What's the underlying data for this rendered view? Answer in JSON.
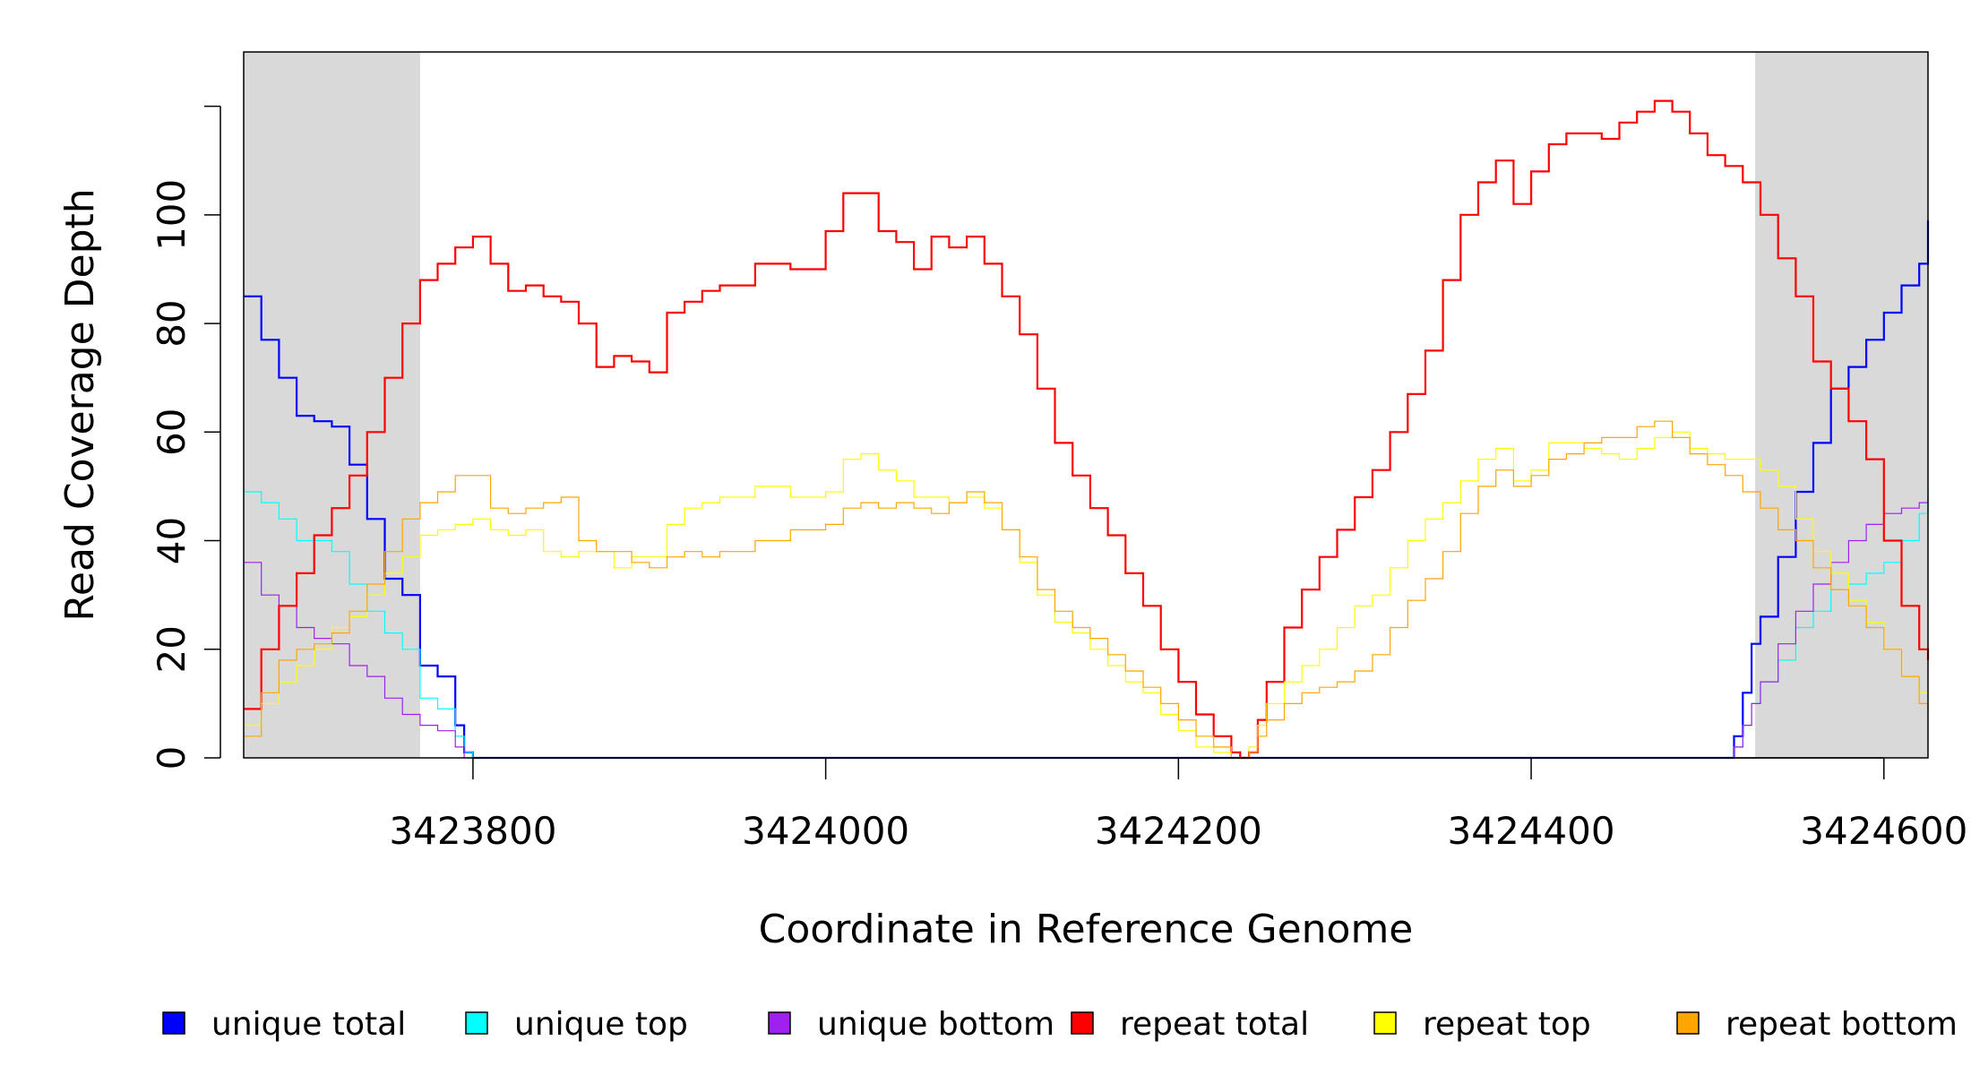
{
  "chart_data": {
    "type": "line",
    "title": "",
    "xlabel": "Coordinate in Reference Genome",
    "ylabel": "Read Coverage Depth",
    "xlim": [
      3423670,
      3424625
    ],
    "ylim": [
      0,
      130
    ],
    "x_ticks": [
      3423800,
      3424000,
      3424200,
      3424400,
      3424600
    ],
    "x_tick_labels": [
      "3423800",
      "3424000",
      "3424200",
      "3424400",
      "3424600"
    ],
    "y_ticks": [
      0,
      20,
      40,
      60,
      80,
      100,
      120
    ],
    "y_tick_labels": [
      "0",
      "20",
      "40",
      "60",
      "80",
      "100",
      ""
    ],
    "shaded_regions": [
      [
        3423670,
        3423770
      ],
      [
        3424527,
        3424625
      ]
    ],
    "grid": false,
    "legend_position": "bottom",
    "series": [
      {
        "name": "unique total",
        "color": "#0000ff",
        "line_width": 2.2,
        "x": [
          3423670,
          3423680,
          3423690,
          3423700,
          3423710,
          3423720,
          3423730,
          3423740,
          3423750,
          3423760,
          3423770,
          3423780,
          3423790,
          3423795,
          3423800,
          3424510,
          3424515,
          3424520,
          3424525,
          3424530,
          3424540,
          3424550,
          3424560,
          3424570,
          3424580,
          3424590,
          3424600,
          3424610,
          3424620,
          3424625
        ],
        "y": [
          85,
          77,
          70,
          63,
          62,
          61,
          54,
          44,
          33,
          30,
          17,
          15,
          6,
          1,
          0,
          0,
          4,
          12,
          21,
          26,
          37,
          49,
          58,
          68,
          72,
          77,
          82,
          87,
          91,
          99
        ]
      },
      {
        "name": "unique top",
        "color": "#00ffff",
        "line_width": 1.2,
        "x": [
          3423670,
          3423680,
          3423690,
          3423700,
          3423710,
          3423720,
          3423730,
          3423740,
          3423750,
          3423760,
          3423770,
          3423780,
          3423790,
          3423795,
          3423800,
          3424510,
          3424515,
          3424520,
          3424525,
          3424530,
          3424540,
          3424550,
          3424560,
          3424570,
          3424580,
          3424590,
          3424600,
          3424610,
          3424620,
          3424625
        ],
        "y": [
          49,
          47,
          44,
          40,
          40,
          38,
          32,
          27,
          23,
          20,
          11,
          9,
          4,
          1,
          0,
          0,
          2,
          6,
          10,
          14,
          18,
          24,
          27,
          31,
          32,
          34,
          36,
          40,
          45,
          50
        ]
      },
      {
        "name": "unique bottom",
        "color": "#a020f0",
        "line_width": 1.2,
        "x": [
          3423670,
          3423680,
          3423690,
          3423700,
          3423710,
          3423720,
          3423730,
          3423740,
          3423750,
          3423760,
          3423770,
          3423780,
          3423790,
          3423795,
          3423800,
          3424510,
          3424515,
          3424520,
          3424525,
          3424530,
          3424540,
          3424550,
          3424560,
          3424570,
          3424580,
          3424590,
          3424600,
          3424610,
          3424620,
          3424625
        ],
        "y": [
          36,
          30,
          28,
          24,
          22,
          21,
          17,
          15,
          11,
          8,
          6,
          5,
          2,
          0,
          0,
          0,
          2,
          6,
          10,
          14,
          21,
          27,
          32,
          36,
          40,
          43,
          45,
          46,
          47,
          48
        ]
      },
      {
        "name": "repeat total",
        "color": "#ff0000",
        "line_width": 2.2,
        "x": [
          3423670,
          3423680,
          3423690,
          3423700,
          3423710,
          3423720,
          3423730,
          3423740,
          3423750,
          3423760,
          3423770,
          3423780,
          3423790,
          3423800,
          3423810,
          3423820,
          3423830,
          3423840,
          3423850,
          3423860,
          3423870,
          3423880,
          3423890,
          3423900,
          3423910,
          3423920,
          3423930,
          3423940,
          3423960,
          3423980,
          3424000,
          3424010,
          3424020,
          3424030,
          3424040,
          3424050,
          3424060,
          3424070,
          3424080,
          3424090,
          3424100,
          3424110,
          3424120,
          3424130,
          3424140,
          3424150,
          3424160,
          3424170,
          3424180,
          3424190,
          3424200,
          3424210,
          3424220,
          3424230,
          3424235,
          3424240,
          3424245,
          3424250,
          3424260,
          3424270,
          3424280,
          3424290,
          3424300,
          3424310,
          3424320,
          3424330,
          3424340,
          3424350,
          3424360,
          3424370,
          3424380,
          3424390,
          3424400,
          3424410,
          3424420,
          3424430,
          3424440,
          3424450,
          3424460,
          3424470,
          3424480,
          3424490,
          3424500,
          3424510,
          3424520,
          3424530,
          3424540,
          3424550,
          3424560,
          3424570,
          3424580,
          3424590,
          3424600,
          3424610,
          3424620,
          3424625
        ],
        "y": [
          9,
          20,
          28,
          34,
          41,
          46,
          52,
          60,
          70,
          80,
          88,
          91,
          94,
          96,
          91,
          86,
          87,
          85,
          84,
          80,
          72,
          74,
          73,
          71,
          82,
          84,
          86,
          87,
          91,
          90,
          97,
          104,
          104,
          97,
          95,
          90,
          96,
          94,
          96,
          91,
          85,
          78,
          68,
          58,
          52,
          46,
          41,
          34,
          28,
          20,
          14,
          8,
          4,
          1,
          0,
          1,
          7,
          14,
          24,
          31,
          37,
          42,
          48,
          53,
          60,
          67,
          75,
          88,
          100,
          106,
          110,
          102,
          108,
          113,
          115,
          115,
          114,
          117,
          119,
          121,
          119,
          115,
          111,
          109,
          106,
          100,
          92,
          85,
          73,
          68,
          62,
          55,
          40,
          28,
          20,
          18
        ]
      },
      {
        "name": "repeat top",
        "color": "#ffff00",
        "line_width": 1.2,
        "x": [
          3423670,
          3423680,
          3423690,
          3423700,
          3423710,
          3423720,
          3423730,
          3423740,
          3423750,
          3423760,
          3423770,
          3423780,
          3423790,
          3423800,
          3423810,
          3423820,
          3423830,
          3423840,
          3423850,
          3423860,
          3423870,
          3423880,
          3423890,
          3423900,
          3423910,
          3423920,
          3423930,
          3423940,
          3423960,
          3423980,
          3424000,
          3424010,
          3424020,
          3424030,
          3424040,
          3424050,
          3424060,
          3424070,
          3424080,
          3424090,
          3424100,
          3424110,
          3424120,
          3424130,
          3424140,
          3424150,
          3424160,
          3424170,
          3424180,
          3424190,
          3424200,
          3424210,
          3424220,
          3424230,
          3424235,
          3424240,
          3424245,
          3424250,
          3424260,
          3424270,
          3424280,
          3424290,
          3424300,
          3424310,
          3424320,
          3424330,
          3424340,
          3424350,
          3424360,
          3424370,
          3424380,
          3424390,
          3424400,
          3424410,
          3424420,
          3424430,
          3424440,
          3424450,
          3424460,
          3424470,
          3424480,
          3424490,
          3424500,
          3424510,
          3424520,
          3424530,
          3424540,
          3424550,
          3424560,
          3424570,
          3424580,
          3424590,
          3424600,
          3424610,
          3424620,
          3424625
        ],
        "y": [
          6,
          10,
          14,
          17,
          20,
          24,
          26,
          30,
          34,
          37,
          41,
          42,
          43,
          44,
          42,
          41,
          42,
          38,
          37,
          38,
          38,
          35,
          37,
          37,
          43,
          46,
          47,
          48,
          50,
          48,
          49,
          55,
          56,
          53,
          51,
          48,
          48,
          47,
          48,
          46,
          42,
          36,
          30,
          25,
          23,
          20,
          17,
          14,
          12,
          8,
          5,
          2,
          1,
          0,
          0,
          2,
          6,
          10,
          14,
          17,
          20,
          24,
          28,
          30,
          35,
          40,
          44,
          47,
          51,
          55,
          57,
          51,
          53,
          58,
          58,
          57,
          56,
          55,
          57,
          59,
          60,
          57,
          56,
          55,
          55,
          53,
          50,
          44,
          38,
          34,
          29,
          25,
          20,
          15,
          12,
          10
        ]
      },
      {
        "name": "repeat bottom",
        "color": "#ffa500",
        "line_width": 1.2,
        "x": [
          3423670,
          3423680,
          3423690,
          3423700,
          3423710,
          3423720,
          3423730,
          3423740,
          3423750,
          3423760,
          3423770,
          3423780,
          3423790,
          3423800,
          3423810,
          3423820,
          3423830,
          3423840,
          3423850,
          3423860,
          3423870,
          3423880,
          3423890,
          3423900,
          3423910,
          3423920,
          3423930,
          3423940,
          3423960,
          3423980,
          3424000,
          3424010,
          3424020,
          3424030,
          3424040,
          3424050,
          3424060,
          3424070,
          3424080,
          3424090,
          3424100,
          3424110,
          3424120,
          3424130,
          3424140,
          3424150,
          3424160,
          3424170,
          3424180,
          3424190,
          3424200,
          3424210,
          3424220,
          3424230,
          3424235,
          3424240,
          3424245,
          3424250,
          3424260,
          3424270,
          3424280,
          3424290,
          3424300,
          3424310,
          3424320,
          3424330,
          3424340,
          3424350,
          3424360,
          3424370,
          3424380,
          3424390,
          3424400,
          3424410,
          3424420,
          3424430,
          3424440,
          3424450,
          3424460,
          3424470,
          3424480,
          3424490,
          3424500,
          3424510,
          3424520,
          3424530,
          3424540,
          3424550,
          3424560,
          3424570,
          3424580,
          3424590,
          3424600,
          3424610,
          3424620,
          3424625
        ],
        "y": [
          4,
          12,
          18,
          20,
          21,
          23,
          27,
          32,
          38,
          44,
          47,
          49,
          52,
          52,
          46,
          45,
          46,
          47,
          48,
          40,
          38,
          38,
          36,
          35,
          37,
          38,
          37,
          38,
          40,
          42,
          43,
          46,
          47,
          46,
          47,
          46,
          45,
          47,
          49,
          47,
          42,
          37,
          31,
          27,
          24,
          22,
          19,
          16,
          13,
          10,
          7,
          4,
          2,
          0,
          0,
          1,
          4,
          7,
          10,
          12,
          13,
          14,
          16,
          19,
          24,
          29,
          33,
          38,
          45,
          50,
          53,
          50,
          52,
          55,
          56,
          58,
          59,
          59,
          61,
          62,
          59,
          56,
          54,
          52,
          49,
          46,
          42,
          40,
          35,
          31,
          28,
          24,
          20,
          15,
          10,
          8
        ]
      }
    ]
  }
}
